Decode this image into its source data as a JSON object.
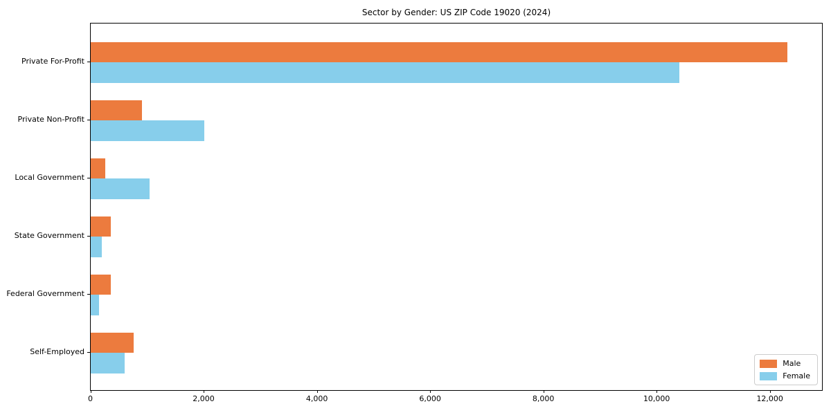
{
  "chart_data": {
    "type": "bar",
    "orientation": "horizontal",
    "title": "Sector by Gender: US ZIP Code 19020 (2024)",
    "categories": [
      "Private For-Profit",
      "Private Non-Profit",
      "Local Government",
      "State Government",
      "Federal Government",
      "Self-Employed"
    ],
    "series": [
      {
        "name": "Male",
        "color": "#EC7B3E",
        "values": [
          12300,
          900,
          260,
          350,
          360,
          760
        ]
      },
      {
        "name": "Female",
        "color": "#87CEEB",
        "values": [
          10400,
          2000,
          1040,
          200,
          150,
          600
        ]
      }
    ],
    "xlabel": "",
    "ylabel": "",
    "xlim": [
      0,
      12915
    ],
    "xticks": [
      0,
      2000,
      4000,
      6000,
      8000,
      10000,
      12000
    ],
    "xtick_labels": [
      "0",
      "2,000",
      "4,000",
      "6,000",
      "8,000",
      "10,000",
      "12,000"
    ],
    "grid": false,
    "legend_position": "lower right"
  }
}
